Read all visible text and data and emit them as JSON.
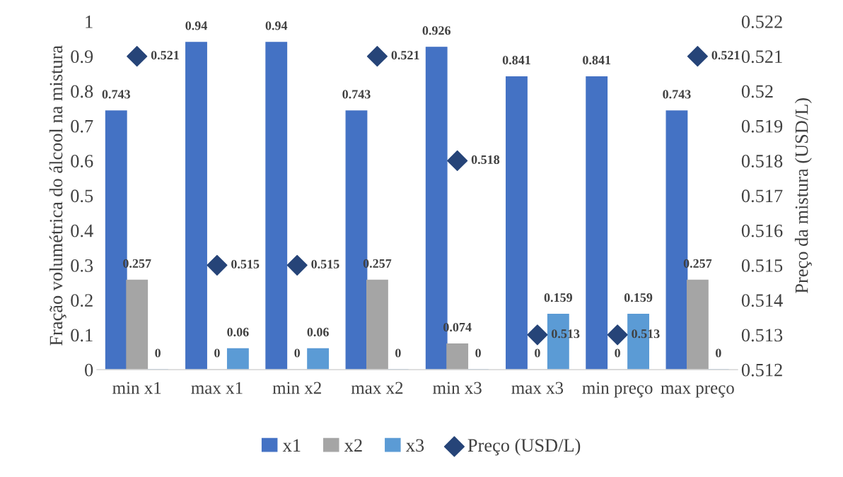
{
  "chart_data": {
    "type": "bar",
    "categories": [
      "min x1",
      "max x1",
      "min x2",
      "max x2",
      "min x3",
      "max x3",
      "min preço",
      "max preço"
    ],
    "ylabel": "Fração volumétrica do álcool na mistura",
    "y2label": "Preço da mistura (USD/L)",
    "series": [
      {
        "name": "x1",
        "color": "#4472c4",
        "values": [
          0.743,
          0.94,
          0.94,
          0.743,
          0.926,
          0.841,
          0.841,
          0.743
        ]
      },
      {
        "name": "x2",
        "color": "#a5a5a5",
        "values": [
          0.257,
          0,
          0,
          0.257,
          0.074,
          0,
          0,
          0.257
        ]
      },
      {
        "name": "x3",
        "color": "#5b9bd5",
        "values": [
          0,
          0.06,
          0.06,
          0,
          0,
          0.159,
          0.159,
          0
        ]
      },
      {
        "name": "Preço (USD/L)",
        "type": "scatter",
        "axis": "y2",
        "marker": "diamond",
        "color": "#264478",
        "values": [
          0.521,
          0.515,
          0.515,
          0.521,
          0.518,
          0.513,
          0.513,
          0.521
        ]
      }
    ],
    "ylim": [
      0,
      1
    ],
    "yticks": [
      0,
      0.1,
      0.2,
      0.3,
      0.4,
      0.5,
      0.6,
      0.7,
      0.8,
      0.9,
      1
    ],
    "y2lim": [
      0.512,
      0.522
    ],
    "y2ticks": [
      0.512,
      0.513,
      0.514,
      0.515,
      0.516,
      0.517,
      0.518,
      0.519,
      0.52,
      0.521,
      0.522
    ],
    "data_labels": true,
    "legend": "bottom",
    "grid": false
  }
}
